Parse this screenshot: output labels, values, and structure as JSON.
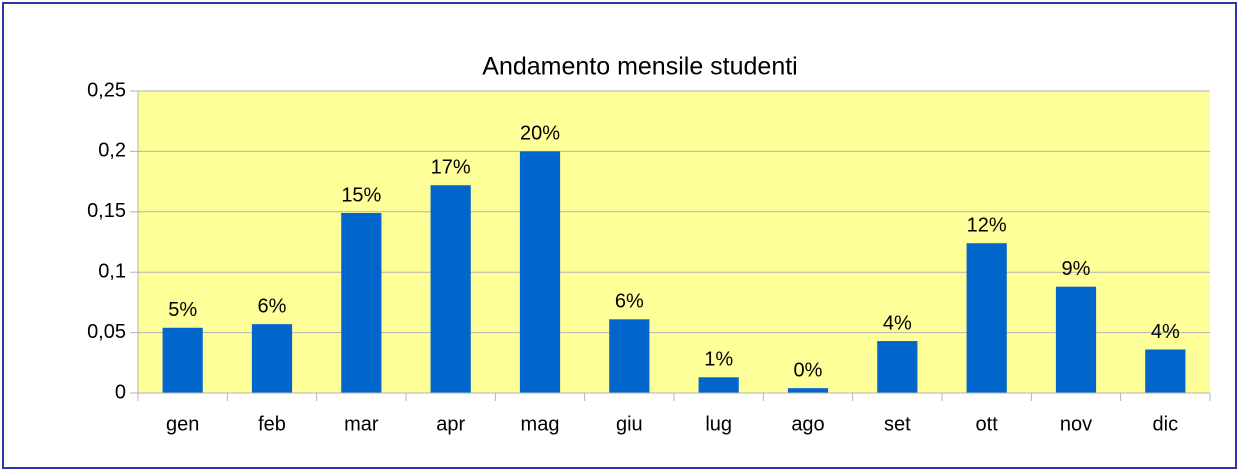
{
  "chart_data": {
    "type": "bar",
    "title": "Andamento mensile studenti",
    "categories": [
      "gen",
      "feb",
      "mar",
      "apr",
      "mag",
      "giu",
      "lug",
      "ago",
      "set",
      "ott",
      "nov",
      "dic"
    ],
    "values": [
      0.054,
      0.057,
      0.149,
      0.172,
      0.2,
      0.061,
      0.013,
      0.004,
      0.043,
      0.124,
      0.088,
      0.036
    ],
    "value_labels": [
      "5%",
      "6%",
      "15%",
      "17%",
      "20%",
      "6%",
      "1%",
      "0%",
      "4%",
      "12%",
      "9%",
      "4%"
    ],
    "color": "#0066cc",
    "ylim": [
      0,
      0.25
    ],
    "yticks": [
      0,
      {
        "value": 0.05,
        "label": "0,05"
      },
      {
        "value": 0.1,
        "label": "0,1"
      },
      {
        "value": 0.15,
        "label": "0,15"
      },
      {
        "value": 0.2,
        "label": "0,2"
      },
      {
        "value": 0.25,
        "label": "0,25"
      }
    ],
    "grid": true
  }
}
